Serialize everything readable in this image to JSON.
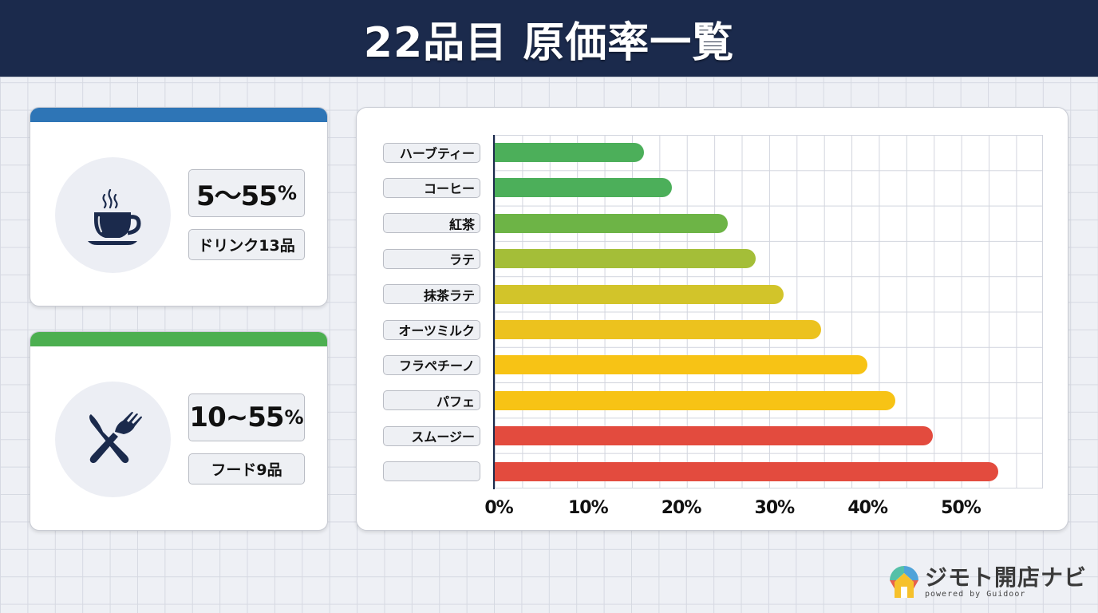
{
  "header": {
    "title": "22品目 原価率一覧"
  },
  "cards": [
    {
      "category": "drink",
      "icon": "coffee-cup-icon",
      "accent_color": "#2e75b6",
      "range_number": "5〜55",
      "range_unit": "%",
      "count_label": "ドリンク13品"
    },
    {
      "category": "food",
      "icon": "knife-fork-icon",
      "accent_color": "#4caf50",
      "range_number": "10~55",
      "range_unit": "%",
      "count_label": "フード9品"
    }
  ],
  "chart_data": {
    "type": "bar",
    "orientation": "horizontal",
    "title": "22品目 原価率一覧",
    "xlabel": "",
    "ylabel": "",
    "xlim": [
      0,
      55
    ],
    "grid": true,
    "legend": null,
    "categories": [
      "ハーブティー",
      "コーヒー",
      "紅茶",
      "ラテ",
      "抹茶ラテ",
      "オーツミルク",
      "フラペチーノ",
      "パフェ",
      "スムージー",
      ""
    ],
    "values": [
      16,
      19,
      25,
      28,
      31,
      35,
      40,
      43,
      47,
      54
    ],
    "unit": "%",
    "colors": [
      "#4caf5a",
      "#4caf5a",
      "#6db446",
      "#a4be38",
      "#d2c42a",
      "#ecc21e",
      "#f7c315",
      "#f7c315",
      "#e34b3e",
      "#e34b3e"
    ],
    "x_ticks": [
      "0%",
      "10%",
      "20%",
      "30%",
      "40%",
      "50%"
    ],
    "x_tick_values": [
      0,
      10,
      20,
      30,
      40,
      50
    ]
  },
  "brand": {
    "name": "ジモト開店ナビ",
    "tagline": "powered by Guidoor"
  }
}
